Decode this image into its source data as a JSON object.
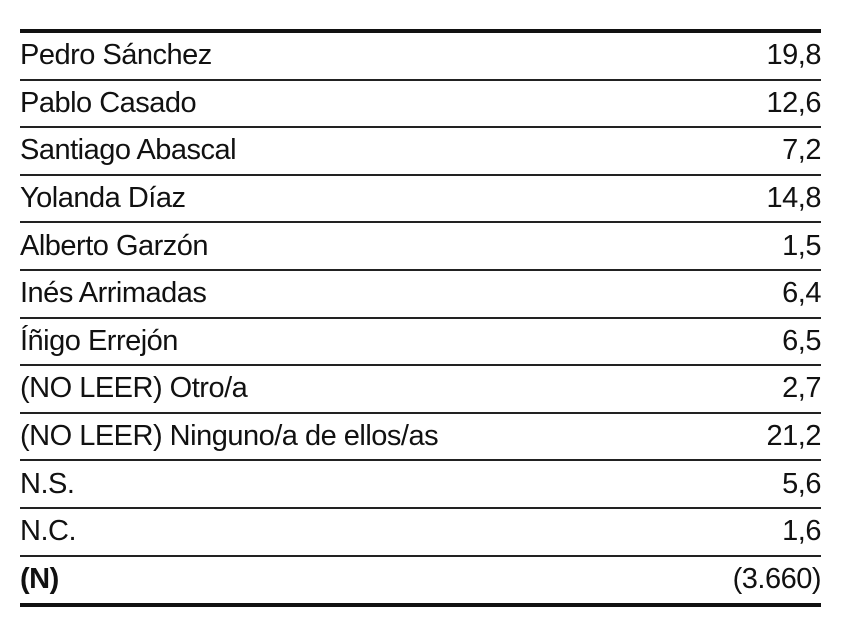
{
  "rows": [
    {
      "label": "Pedro Sánchez",
      "value": "19,8"
    },
    {
      "label": "Pablo Casado",
      "value": "12,6"
    },
    {
      "label": "Santiago Abascal",
      "value": "7,2"
    },
    {
      "label": "Yolanda Díaz",
      "value": "14,8"
    },
    {
      "label": "Alberto Garzón",
      "value": "1,5"
    },
    {
      "label": "Inés Arrimadas",
      "value": "6,4"
    },
    {
      "label": "Íñigo Errejón",
      "value": "6,5"
    },
    {
      "label": "(NO LEER) Otro/a",
      "value": "2,7"
    },
    {
      "label": "(NO LEER) Ninguno/a de ellos/as",
      "value": "21,2"
    },
    {
      "label": "N.S.",
      "value": "5,6"
    },
    {
      "label": "N.C.",
      "value": "1,6"
    }
  ],
  "total": {
    "label": "(N)",
    "value": "(3.660)"
  }
}
